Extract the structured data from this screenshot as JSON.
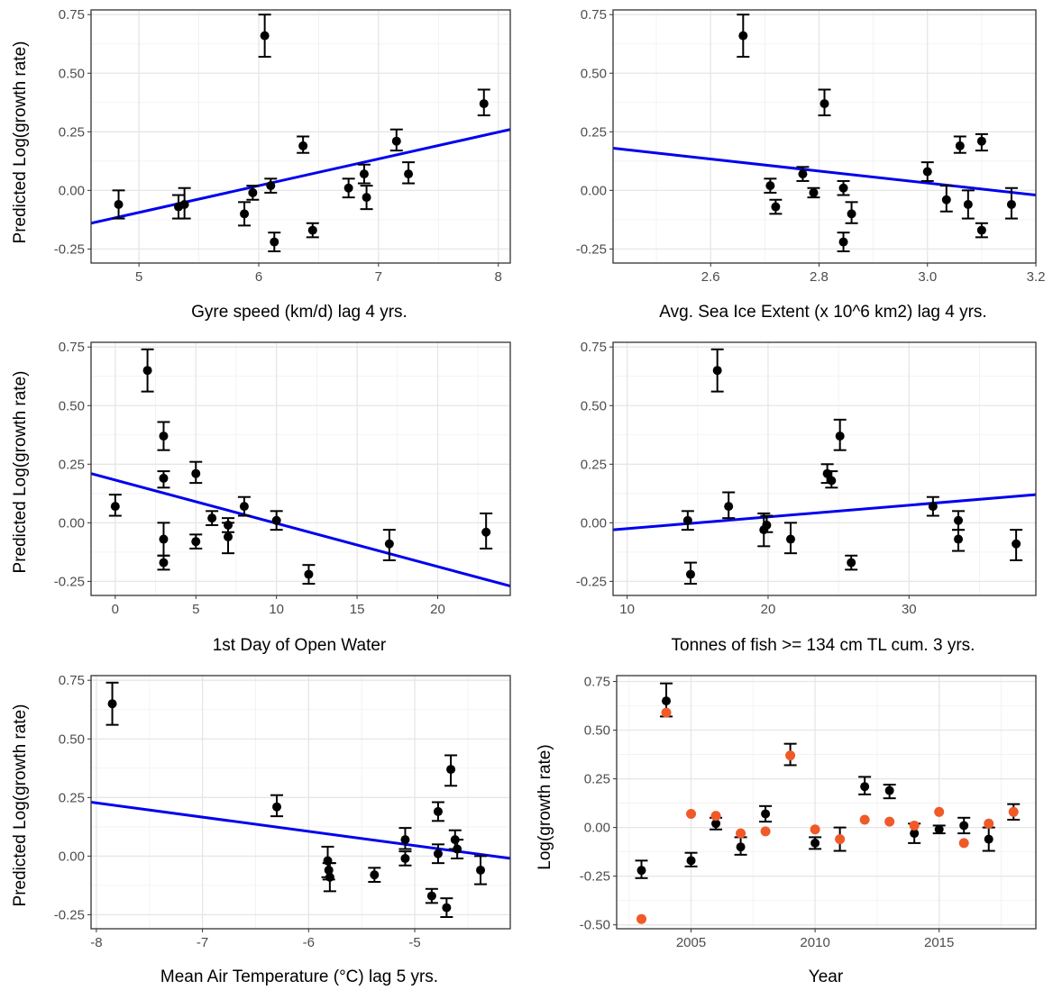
{
  "colors": {
    "point": "#000000",
    "fit_line": "#0000ee",
    "observed": "#f05a28",
    "grid": "#e6e6e6",
    "frame": "#333333"
  },
  "chart_data": [
    {
      "type": "scatter",
      "panel": "a",
      "xlabel": "Gyre speed (km/d) lag 4 yrs.",
      "ylabel": "Predicted Log(growth rate)",
      "xlim": [
        4.6,
        8.1
      ],
      "ylim": [
        -0.31,
        0.77
      ],
      "xticks": [
        5,
        6,
        7,
        8
      ],
      "yticks": [
        -0.25,
        0.0,
        0.25,
        0.5,
        0.75
      ],
      "yticklabels": [
        "-0.25",
        "0.00",
        "0.25",
        "0.50",
        "0.75"
      ],
      "grid": true,
      "points": [
        {
          "x": 4.83,
          "y": -0.06,
          "lo": -0.12,
          "hi": 0.0
        },
        {
          "x": 5.33,
          "y": -0.07,
          "lo": -0.12,
          "hi": -0.02
        },
        {
          "x": 5.38,
          "y": -0.06,
          "lo": -0.12,
          "hi": 0.01
        },
        {
          "x": 5.88,
          "y": -0.1,
          "lo": -0.15,
          "hi": -0.05
        },
        {
          "x": 5.95,
          "y": -0.01,
          "lo": -0.04,
          "hi": 0.02
        },
        {
          "x": 6.05,
          "y": 0.66,
          "lo": 0.57,
          "hi": 0.75
        },
        {
          "x": 6.1,
          "y": 0.02,
          "lo": -0.01,
          "hi": 0.05
        },
        {
          "x": 6.13,
          "y": -0.22,
          "lo": -0.26,
          "hi": -0.18
        },
        {
          "x": 6.37,
          "y": 0.19,
          "lo": 0.16,
          "hi": 0.23
        },
        {
          "x": 6.45,
          "y": -0.17,
          "lo": -0.2,
          "hi": -0.14
        },
        {
          "x": 6.75,
          "y": 0.01,
          "lo": -0.03,
          "hi": 0.05
        },
        {
          "x": 6.88,
          "y": 0.07,
          "lo": 0.03,
          "hi": 0.11
        },
        {
          "x": 6.9,
          "y": -0.03,
          "lo": -0.08,
          "hi": 0.02
        },
        {
          "x": 7.15,
          "y": 0.21,
          "lo": 0.17,
          "hi": 0.26
        },
        {
          "x": 7.25,
          "y": 0.07,
          "lo": 0.03,
          "hi": 0.12
        },
        {
          "x": 7.88,
          "y": 0.37,
          "lo": 0.32,
          "hi": 0.43
        }
      ],
      "fit": [
        [
          4.6,
          -0.14
        ],
        [
          8.1,
          0.26
        ]
      ]
    },
    {
      "type": "scatter",
      "panel": "b",
      "xlabel": "Avg. Sea Ice Extent (x 10^6 km2) lag 4 yrs.",
      "ylabel": "",
      "xlim": [
        2.42,
        3.2
      ],
      "ylim": [
        -0.31,
        0.77
      ],
      "xticks": [
        2.6,
        2.8,
        3.0,
        3.2
      ],
      "xticklabels": [
        "2.6",
        "2.8",
        "3.0",
        "3.2"
      ],
      "yticks": [
        -0.25,
        0.0,
        0.25,
        0.5,
        0.75
      ],
      "yticklabels": [
        "-0.25",
        "0.00",
        "0.25",
        "0.50",
        "0.75"
      ],
      "grid": true,
      "points": [
        {
          "x": 2.66,
          "y": 0.66,
          "lo": 0.57,
          "hi": 0.75
        },
        {
          "x": 2.71,
          "y": 0.02,
          "lo": -0.01,
          "hi": 0.05
        },
        {
          "x": 2.72,
          "y": -0.07,
          "lo": -0.1,
          "hi": -0.04
        },
        {
          "x": 2.77,
          "y": 0.07,
          "lo": 0.04,
          "hi": 0.1
        },
        {
          "x": 2.79,
          "y": -0.01,
          "lo": -0.03,
          "hi": 0.01
        },
        {
          "x": 2.81,
          "y": 0.37,
          "lo": 0.32,
          "hi": 0.43
        },
        {
          "x": 2.845,
          "y": 0.01,
          "lo": -0.02,
          "hi": 0.04
        },
        {
          "x": 2.845,
          "y": -0.22,
          "lo": -0.26,
          "hi": -0.18
        },
        {
          "x": 2.86,
          "y": -0.1,
          "lo": -0.14,
          "hi": -0.05
        },
        {
          "x": 3.0,
          "y": 0.08,
          "lo": 0.04,
          "hi": 0.12
        },
        {
          "x": 3.035,
          "y": -0.04,
          "lo": -0.09,
          "hi": 0.02
        },
        {
          "x": 3.06,
          "y": 0.19,
          "lo": 0.16,
          "hi": 0.23
        },
        {
          "x": 3.075,
          "y": -0.06,
          "lo": -0.12,
          "hi": 0.0
        },
        {
          "x": 3.1,
          "y": 0.21,
          "lo": 0.17,
          "hi": 0.24
        },
        {
          "x": 3.1,
          "y": -0.17,
          "lo": -0.2,
          "hi": -0.14
        },
        {
          "x": 3.155,
          "y": -0.06,
          "lo": -0.12,
          "hi": 0.01
        }
      ],
      "fit": [
        [
          2.42,
          0.18
        ],
        [
          3.2,
          -0.02
        ]
      ]
    },
    {
      "type": "scatter",
      "panel": "c",
      "xlabel": "1st Day of Open Water",
      "ylabel": "Predicted Log(growth rate)",
      "xlim": [
        -1.5,
        24.5
      ],
      "ylim": [
        -0.31,
        0.77
      ],
      "xticks": [
        0,
        5,
        10,
        15,
        20
      ],
      "yticks": [
        -0.25,
        0.0,
        0.25,
        0.5,
        0.75
      ],
      "yticklabels": [
        "-0.25",
        "0.00",
        "0.25",
        "0.50",
        "0.75"
      ],
      "grid": true,
      "points": [
        {
          "x": 0,
          "y": 0.07,
          "lo": 0.03,
          "hi": 0.12
        },
        {
          "x": 2,
          "y": 0.65,
          "lo": 0.56,
          "hi": 0.74
        },
        {
          "x": 3,
          "y": 0.37,
          "lo": 0.31,
          "hi": 0.43
        },
        {
          "x": 3,
          "y": 0.19,
          "lo": 0.15,
          "hi": 0.22
        },
        {
          "x": 3,
          "y": -0.07,
          "lo": -0.14,
          "hi": 0.0
        },
        {
          "x": 3,
          "y": -0.17,
          "lo": -0.2,
          "hi": -0.14
        },
        {
          "x": 5,
          "y": 0.21,
          "lo": 0.17,
          "hi": 0.26
        },
        {
          "x": 5,
          "y": -0.08,
          "lo": -0.11,
          "hi": -0.05
        },
        {
          "x": 6,
          "y": 0.02,
          "lo": -0.01,
          "hi": 0.05
        },
        {
          "x": 7,
          "y": -0.01,
          "lo": -0.04,
          "hi": 0.02
        },
        {
          "x": 7,
          "y": -0.06,
          "lo": -0.13,
          "hi": 0.0
        },
        {
          "x": 8,
          "y": 0.07,
          "lo": 0.03,
          "hi": 0.11
        },
        {
          "x": 10,
          "y": 0.01,
          "lo": -0.03,
          "hi": 0.05
        },
        {
          "x": 12,
          "y": -0.22,
          "lo": -0.26,
          "hi": -0.18
        },
        {
          "x": 17,
          "y": -0.09,
          "lo": -0.16,
          "hi": -0.03
        },
        {
          "x": 23,
          "y": -0.04,
          "lo": -0.11,
          "hi": 0.04
        }
      ],
      "fit": [
        [
          -1.5,
          0.21
        ],
        [
          24.5,
          -0.27
        ]
      ]
    },
    {
      "type": "scatter",
      "panel": "d",
      "xlabel": "Tonnes of fish >= 134 cm TL cum. 3 yrs.",
      "ylabel": "",
      "xlim": [
        9,
        39
      ],
      "ylim": [
        -0.31,
        0.77
      ],
      "xticks": [
        10,
        20,
        30
      ],
      "yticks": [
        -0.25,
        0.0,
        0.25,
        0.5,
        0.75
      ],
      "yticklabels": [
        "-0.25",
        "0.00",
        "0.25",
        "0.50",
        "0.75"
      ],
      "grid": true,
      "points": [
        {
          "x": 14.3,
          "y": 0.01,
          "lo": -0.03,
          "hi": 0.05
        },
        {
          "x": 14.5,
          "y": -0.22,
          "lo": -0.26,
          "hi": -0.17
        },
        {
          "x": 16.4,
          "y": 0.65,
          "lo": 0.56,
          "hi": 0.74
        },
        {
          "x": 17.2,
          "y": 0.07,
          "lo": 0.02,
          "hi": 0.13
        },
        {
          "x": 19.7,
          "y": -0.03,
          "lo": -0.1,
          "hi": 0.04
        },
        {
          "x": 19.9,
          "y": -0.01,
          "lo": -0.04,
          "hi": 0.03
        },
        {
          "x": 21.6,
          "y": -0.07,
          "lo": -0.13,
          "hi": 0.0
        },
        {
          "x": 24.2,
          "y": 0.21,
          "lo": 0.17,
          "hi": 0.25
        },
        {
          "x": 24.5,
          "y": 0.18,
          "lo": 0.15,
          "hi": 0.22
        },
        {
          "x": 25.1,
          "y": 0.37,
          "lo": 0.31,
          "hi": 0.44
        },
        {
          "x": 25.9,
          "y": -0.17,
          "lo": -0.2,
          "hi": -0.14
        },
        {
          "x": 31.7,
          "y": 0.07,
          "lo": 0.03,
          "hi": 0.11
        },
        {
          "x": 33.5,
          "y": 0.01,
          "lo": -0.03,
          "hi": 0.05
        },
        {
          "x": 33.5,
          "y": -0.07,
          "lo": -0.12,
          "hi": -0.03
        },
        {
          "x": 37.6,
          "y": -0.09,
          "lo": -0.16,
          "hi": -0.03
        }
      ],
      "fit": [
        [
          9,
          -0.03
        ],
        [
          39,
          0.12
        ]
      ]
    },
    {
      "type": "scatter",
      "panel": "e",
      "xlabel": "Mean Air Temperature (°C) lag 5 yrs.",
      "ylabel": "Predicted Log(growth rate)",
      "xlim": [
        -8.05,
        -4.1
      ],
      "ylim": [
        -0.31,
        0.77
      ],
      "xticks": [
        -8,
        -7,
        -6,
        -5
      ],
      "yticks": [
        -0.25,
        0.0,
        0.25,
        0.5,
        0.75
      ],
      "yticklabels": [
        "-0.25",
        "0.00",
        "0.25",
        "0.50",
        "0.75"
      ],
      "grid": true,
      "points": [
        {
          "x": -7.85,
          "y": 0.65,
          "lo": 0.56,
          "hi": 0.74
        },
        {
          "x": -6.3,
          "y": 0.21,
          "lo": 0.17,
          "hi": 0.26
        },
        {
          "x": -5.82,
          "y": -0.02,
          "lo": -0.09,
          "hi": 0.04
        },
        {
          "x": -5.81,
          "y": -0.06,
          "lo": -0.1,
          "hi": -0.03
        },
        {
          "x": -5.8,
          "y": -0.09,
          "lo": -0.15,
          "hi": -0.03
        },
        {
          "x": -5.38,
          "y": -0.08,
          "lo": -0.11,
          "hi": -0.05
        },
        {
          "x": -5.09,
          "y": 0.07,
          "lo": 0.03,
          "hi": 0.12
        },
        {
          "x": -5.09,
          "y": -0.01,
          "lo": -0.04,
          "hi": 0.02
        },
        {
          "x": -4.84,
          "y": -0.17,
          "lo": -0.2,
          "hi": -0.14
        },
        {
          "x": -4.78,
          "y": 0.19,
          "lo": 0.15,
          "hi": 0.23
        },
        {
          "x": -4.78,
          "y": 0.01,
          "lo": -0.03,
          "hi": 0.05
        },
        {
          "x": -4.7,
          "y": -0.22,
          "lo": -0.26,
          "hi": -0.18
        },
        {
          "x": -4.66,
          "y": 0.37,
          "lo": 0.3,
          "hi": 0.43
        },
        {
          "x": -4.62,
          "y": 0.07,
          "lo": 0.03,
          "hi": 0.11
        },
        {
          "x": -4.6,
          "y": 0.03,
          "lo": -0.01,
          "hi": 0.07
        },
        {
          "x": -4.38,
          "y": -0.06,
          "lo": -0.12,
          "hi": 0.0
        }
      ],
      "fit": [
        [
          -8.05,
          0.23
        ],
        [
          -4.1,
          -0.01
        ]
      ]
    },
    {
      "type": "scatter",
      "panel": "f",
      "xlabel": "Year",
      "ylabel": "Log(growth rate)",
      "xlim": [
        2002.0,
        2018.9
      ],
      "ylim": [
        -0.52,
        0.78
      ],
      "xticks": [
        2005,
        2010,
        2015
      ],
      "yticks": [
        -0.5,
        -0.25,
        0.0,
        0.25,
        0.5,
        0.75
      ],
      "yticklabels": [
        "-0.50",
        "-0.25",
        "0.00",
        "0.25",
        "0.50",
        "0.75"
      ],
      "grid": true,
      "points": [
        {
          "x": 2003,
          "y": -0.22,
          "lo": -0.26,
          "hi": -0.17
        },
        {
          "x": 2004,
          "y": 0.65,
          "lo": 0.57,
          "hi": 0.74
        },
        {
          "x": 2005,
          "y": -0.17,
          "lo": -0.2,
          "hi": -0.13
        },
        {
          "x": 2006,
          "y": 0.02,
          "lo": -0.01,
          "hi": 0.05
        },
        {
          "x": 2007,
          "y": -0.1,
          "lo": -0.14,
          "hi": -0.05
        },
        {
          "x": 2008,
          "y": 0.07,
          "lo": 0.03,
          "hi": 0.11
        },
        {
          "x": 2009,
          "y": 0.37,
          "lo": 0.32,
          "hi": 0.43
        },
        {
          "x": 2010,
          "y": -0.08,
          "lo": -0.11,
          "hi": -0.05
        },
        {
          "x": 2011,
          "y": -0.06,
          "lo": -0.12,
          "hi": 0.0
        },
        {
          "x": 2012,
          "y": 0.21,
          "lo": 0.17,
          "hi": 0.26
        },
        {
          "x": 2013,
          "y": 0.19,
          "lo": 0.15,
          "hi": 0.22
        },
        {
          "x": 2014,
          "y": -0.03,
          "lo": -0.08,
          "hi": 0.02
        },
        {
          "x": 2015,
          "y": -0.01,
          "lo": -0.03,
          "hi": 0.01
        },
        {
          "x": 2016,
          "y": 0.01,
          "lo": -0.03,
          "hi": 0.05
        },
        {
          "x": 2017,
          "y": -0.06,
          "lo": -0.12,
          "hi": 0.0
        },
        {
          "x": 2018,
          "y": 0.08,
          "lo": 0.04,
          "hi": 0.12
        }
      ],
      "observed": [
        {
          "x": 2003,
          "y": -0.47
        },
        {
          "x": 2004,
          "y": 0.59
        },
        {
          "x": 2005,
          "y": 0.07
        },
        {
          "x": 2006,
          "y": 0.06
        },
        {
          "x": 2007,
          "y": -0.03
        },
        {
          "x": 2008,
          "y": -0.02
        },
        {
          "x": 2009,
          "y": 0.37
        },
        {
          "x": 2010,
          "y": -0.01
        },
        {
          "x": 2011,
          "y": -0.06
        },
        {
          "x": 2012,
          "y": 0.04
        },
        {
          "x": 2013,
          "y": 0.03
        },
        {
          "x": 2014,
          "y": 0.01
        },
        {
          "x": 2015,
          "y": 0.08
        },
        {
          "x": 2016,
          "y": -0.08
        },
        {
          "x": 2017,
          "y": 0.02
        },
        {
          "x": 2018,
          "y": 0.08
        }
      ]
    }
  ]
}
